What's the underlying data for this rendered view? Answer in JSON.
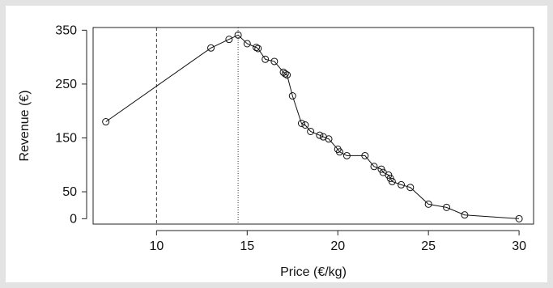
{
  "chart_data": {
    "type": "line",
    "xlabel": "Price (€/kg)",
    "ylabel": "Revenue (€)",
    "xlim": [
      6.5,
      30.8
    ],
    "ylim": [
      -10,
      355
    ],
    "xticks": [
      10,
      15,
      20,
      25,
      30
    ],
    "yticks": [
      0,
      50,
      150,
      250,
      350
    ],
    "grid": false,
    "series": [
      {
        "markers": "open-circle",
        "points": [
          [
            7.2,
            180
          ],
          [
            13,
            317
          ],
          [
            14,
            333
          ],
          [
            14.5,
            341
          ],
          [
            15,
            325
          ],
          [
            15.5,
            318
          ],
          [
            15.6,
            316
          ],
          [
            16,
            296
          ],
          [
            16.5,
            292
          ],
          [
            17,
            272
          ],
          [
            17.1,
            269
          ],
          [
            17.2,
            267
          ],
          [
            17.5,
            228
          ],
          [
            18,
            177
          ],
          [
            18.2,
            174
          ],
          [
            18.5,
            162
          ],
          [
            19,
            155
          ],
          [
            19.2,
            152
          ],
          [
            19.5,
            148
          ],
          [
            20,
            129
          ],
          [
            20.1,
            124
          ],
          [
            20.5,
            117
          ],
          [
            21.5,
            117
          ],
          [
            22,
            97
          ],
          [
            22.4,
            92
          ],
          [
            22.5,
            86
          ],
          [
            22.8,
            81
          ],
          [
            22.9,
            75
          ],
          [
            23,
            69
          ],
          [
            23.5,
            63
          ],
          [
            24,
            58
          ],
          [
            25,
            27
          ],
          [
            26,
            21
          ],
          [
            27,
            7
          ],
          [
            30,
            0
          ]
        ]
      }
    ],
    "reference_lines": [
      {
        "x": 10,
        "style": "dashed"
      },
      {
        "x": 14.5,
        "style": "dotted"
      }
    ]
  }
}
